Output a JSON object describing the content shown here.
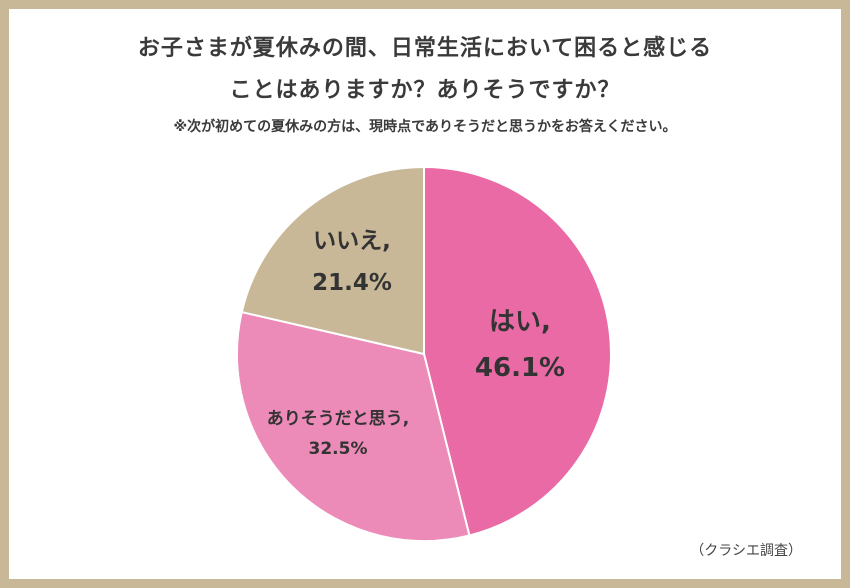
{
  "header": {
    "title_line1": "お子さまが夏休みの間、日常生活において困ると感じる",
    "title_line2": "ことはありますか？ありそうですか？",
    "note": "※次が初めての夏休みの方は、現時点でありそうだと思うかをお答えください。"
  },
  "footer": {
    "source": "（クラシエ調査）"
  },
  "chart_data": {
    "type": "pie",
    "title": "お子さまが夏休みの間、日常生活において困ると感じることはありますか？ありそうですか？",
    "subtitle": "※次が初めての夏休みの方は、現時点でありそうだと思うかをお答えください。",
    "slices": [
      {
        "label": "はい,",
        "value": 46.1,
        "value_label": "46.1%",
        "color": "#e96aa4"
      },
      {
        "label": "ありそうだと思う,",
        "value": 32.5,
        "value_label": "32.5%",
        "color": "#ec8ab8"
      },
      {
        "label": "いいえ,",
        "value": 21.4,
        "value_label": "21.4%",
        "color": "#c8b898"
      }
    ],
    "start": "12 o'clock",
    "direction": "clockwise",
    "legend": "none"
  }
}
